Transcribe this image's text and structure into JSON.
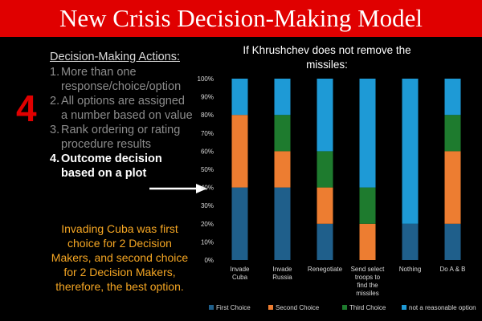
{
  "slide": {
    "title": "New Crisis Decision-Making Model",
    "step_number": "4",
    "actions_heading": "Decision-Making Actions:",
    "actions": [
      {
        "num": "1.",
        "text": "More than one response/choice/option"
      },
      {
        "num": "2.",
        "text": "All options are assigned a number based on value"
      },
      {
        "num": "3.",
        "text": "Rank ordering or rating procedure results"
      },
      {
        "num": "4.",
        "text": "Outcome decision based on a plot"
      }
    ],
    "conclusion": "Invading Cuba was first choice for 2 Decision Makers, and second choice for 2 Decision Makers, therefore, the best option."
  },
  "colors": {
    "title_bar": "#e00000",
    "step_number": "#e00000",
    "conclusion_text": "#f5a623"
  },
  "chart_data": {
    "type": "bar",
    "stacked": true,
    "title": "If Khrushchev does not remove the missiles:",
    "categories": [
      "Invade Cuba",
      "Invade Russia",
      "Renegotiate",
      "Send select troops to find the missiles",
      "Nothing",
      "Do A & B"
    ],
    "category_lines": [
      [
        "Invade",
        "Cuba"
      ],
      [
        "Invade",
        "Russia"
      ],
      [
        "Renegotiate"
      ],
      [
        "Send select",
        "troops to",
        "find the",
        "missiles"
      ],
      [
        "Nothing"
      ],
      [
        "Do A & B"
      ]
    ],
    "series": [
      {
        "name": "First Choice",
        "color": "#1f5f8b",
        "values": [
          40,
          40,
          20,
          0,
          20,
          20
        ]
      },
      {
        "name": "Second Choice",
        "color": "#ed7d31",
        "values": [
          40,
          20,
          20,
          20,
          0,
          40
        ]
      },
      {
        "name": "Third Choice",
        "color": "#1e7b2e",
        "values": [
          0,
          20,
          20,
          20,
          0,
          20
        ]
      },
      {
        "name": "not a reasonable option",
        "color": "#1e9ad6",
        "values": [
          20,
          20,
          40,
          60,
          80,
          20
        ]
      }
    ],
    "ylim": [
      0,
      100
    ],
    "yticks": [
      "0%",
      "10%",
      "20%",
      "30%",
      "40%",
      "50%",
      "60%",
      "70%",
      "80%",
      "90%",
      "100%"
    ],
    "grid": false,
    "legend_position": "bottom"
  }
}
